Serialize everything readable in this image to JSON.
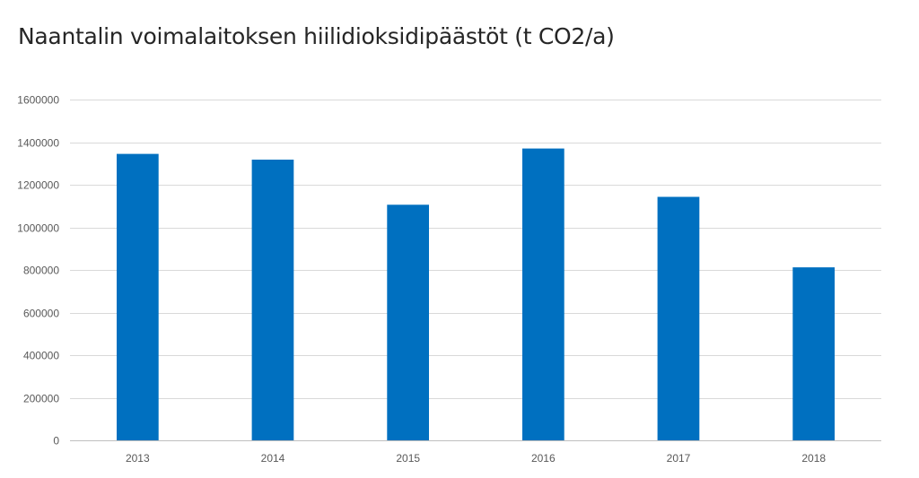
{
  "chart_data": {
    "type": "bar",
    "title": "Naantalin voimalaitoksen hiilidioksidipäästöt (t CO2/a)",
    "xlabel": "",
    "ylabel": "",
    "categories": [
      "2013",
      "2014",
      "2015",
      "2016",
      "2017",
      "2018"
    ],
    "values": [
      1345000,
      1318000,
      1106000,
      1370000,
      1143000,
      812000
    ],
    "ylim": [
      0,
      1600000
    ],
    "yticks": [
      0,
      200000,
      400000,
      600000,
      800000,
      1000000,
      1200000,
      1400000,
      1600000
    ],
    "grid": true,
    "legend": "none",
    "bar_color": "#0070C0",
    "grid_color": "#D9D9D9",
    "axis_color": "#BFBFBF"
  }
}
